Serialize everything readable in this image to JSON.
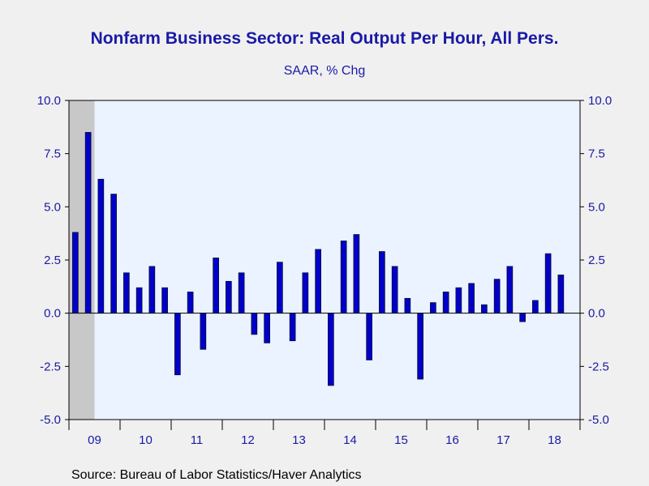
{
  "source": "Source:  Bureau of Labor Statistics/Haver Analytics",
  "chart_data": {
    "type": "bar",
    "title": "Nonfarm Business Sector: Real Output Per Hour, All Pers.",
    "subtitle": "SAAR, % Chg",
    "ylim": [
      -5.0,
      10.0
    ],
    "y_ticks": [
      -5.0,
      -2.5,
      0.0,
      2.5,
      5.0,
      7.5,
      10.0
    ],
    "y_tick_labels": [
      "-5.0",
      "-2.5",
      "0.0",
      "2.5",
      "5.0",
      "7.5",
      "10.0"
    ],
    "x_tick_labels": [
      "09",
      "10",
      "11",
      "12",
      "13",
      "14",
      "15",
      "16",
      "17",
      "18"
    ],
    "x_start": "2009 Q1",
    "x_end": "2018 Q3",
    "recession_shading": {
      "from": "2009 Q1",
      "to": "2009 Q2"
    },
    "colors": {
      "bar": "#0000c8",
      "plot_background": "#eaf3ff",
      "recession": "#c8c8c8",
      "axis_text": "#1a1aa6",
      "title": "#1a1aa6"
    },
    "grid": false,
    "categories": [
      "2009 Q1",
      "2009 Q2",
      "2009 Q3",
      "2009 Q4",
      "2010 Q1",
      "2010 Q2",
      "2010 Q3",
      "2010 Q4",
      "2011 Q1",
      "2011 Q2",
      "2011 Q3",
      "2011 Q4",
      "2012 Q1",
      "2012 Q2",
      "2012 Q3",
      "2012 Q4",
      "2013 Q1",
      "2013 Q2",
      "2013 Q3",
      "2013 Q4",
      "2014 Q1",
      "2014 Q2",
      "2014 Q3",
      "2014 Q4",
      "2015 Q1",
      "2015 Q2",
      "2015 Q3",
      "2015 Q4",
      "2016 Q1",
      "2016 Q2",
      "2016 Q3",
      "2016 Q4",
      "2017 Q1",
      "2017 Q2",
      "2017 Q3",
      "2017 Q4",
      "2018 Q1",
      "2018 Q2",
      "2018 Q3"
    ],
    "values": [
      3.8,
      8.5,
      6.3,
      5.6,
      1.9,
      1.2,
      2.2,
      1.2,
      -2.9,
      1.0,
      -1.7,
      2.6,
      1.5,
      1.9,
      -1.0,
      -1.4,
      2.4,
      -1.3,
      1.9,
      3.0,
      -3.4,
      3.4,
      3.7,
      -2.2,
      2.9,
      2.2,
      0.7,
      -3.1,
      0.5,
      1.0,
      1.2,
      1.4,
      0.4,
      1.6,
      2.2,
      -0.4,
      0.6,
      2.8,
      1.8
    ]
  }
}
